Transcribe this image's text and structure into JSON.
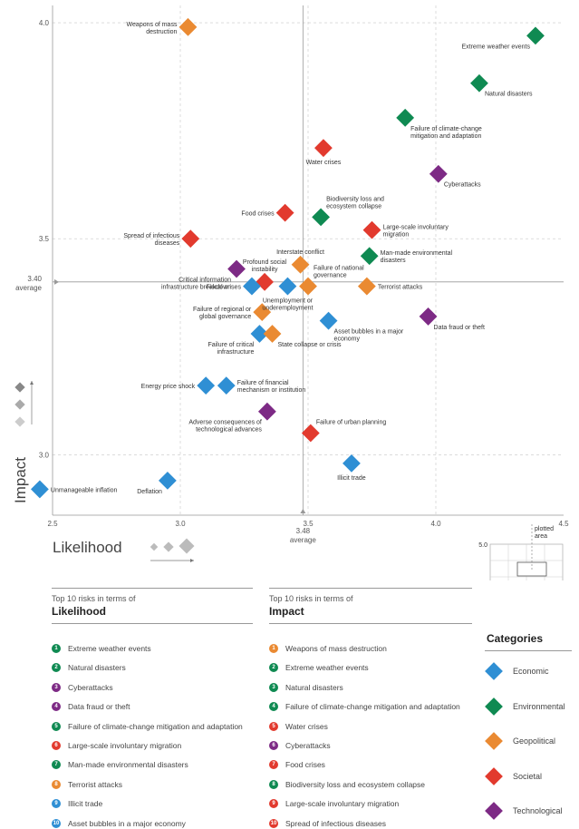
{
  "colors": {
    "Economic": "#2f8fd4",
    "Environmental": "#0f8a52",
    "Geopolitical": "#ea8a32",
    "Societal": "#e23a2e",
    "Technological": "#7d2a85"
  },
  "chart_data": {
    "type": "scatter",
    "xlim": [
      2.5,
      4.5
    ],
    "ylim": [
      2.86,
      4.04
    ],
    "xticks": [
      "2.5",
      "3.0",
      "3.5",
      "4.0",
      "4.5"
    ],
    "yticks": [
      "3.0",
      "3.5",
      "4.0"
    ],
    "xlabel": "Likelihood",
    "ylabel": "Impact",
    "x_average": {
      "value": "3.48",
      "label": "average"
    },
    "y_average": {
      "value": "3.40",
      "label": "average"
    },
    "grid": true,
    "points": [
      {
        "label": "Extreme weather events",
        "x": 4.39,
        "y": 3.97,
        "category": "Environmental",
        "label_pos": "bl"
      },
      {
        "label": "Natural disasters",
        "x": 4.17,
        "y": 3.86,
        "category": "Environmental",
        "label_pos": "br"
      },
      {
        "label": "Failure of climate-change mitigation and adaptation",
        "x": 3.88,
        "y": 3.78,
        "category": "Environmental",
        "label_pos": "br"
      },
      {
        "label": "Cyberattacks",
        "x": 4.01,
        "y": 3.65,
        "category": "Technological",
        "label_pos": "br"
      },
      {
        "label": "Water crises",
        "x": 3.56,
        "y": 3.71,
        "category": "Societal",
        "label_pos": "b"
      },
      {
        "label": "Food crises",
        "x": 3.41,
        "y": 3.56,
        "category": "Societal",
        "label_pos": "l"
      },
      {
        "label": "Biodiversity loss and ecosystem collapse",
        "x": 3.55,
        "y": 3.55,
        "category": "Environmental",
        "label_pos": "tr"
      },
      {
        "label": "Large-scale involuntary migration",
        "x": 3.75,
        "y": 3.52,
        "category": "Societal",
        "label_pos": "r"
      },
      {
        "label": "Man-made environmental disasters",
        "x": 3.74,
        "y": 3.46,
        "category": "Environmental",
        "label_pos": "r"
      },
      {
        "label": "Weapons of mass destruction",
        "x": 3.03,
        "y": 3.99,
        "category": "Geopolitical",
        "label_pos": "l"
      },
      {
        "label": "Spread of infectious diseases",
        "x": 3.04,
        "y": 3.5,
        "category": "Societal",
        "label_pos": "l"
      },
      {
        "label": "Interstate conflict",
        "x": 3.47,
        "y": 3.44,
        "category": "Geopolitical",
        "label_pos": "t"
      },
      {
        "label": "Critical information infrastructure breakdown",
        "x": 3.22,
        "y": 3.43,
        "category": "Technological",
        "label_pos": "bl"
      },
      {
        "label": "Profound social instability",
        "x": 3.33,
        "y": 3.4,
        "category": "Societal",
        "label_pos": "t"
      },
      {
        "label": "Fiscal crises",
        "x": 3.28,
        "y": 3.39,
        "category": "Economic",
        "label_pos": "l"
      },
      {
        "label": "Failure of national governance",
        "x": 3.5,
        "y": 3.39,
        "category": "Geopolitical",
        "label_pos": "tr"
      },
      {
        "label": "Terrorist attacks",
        "x": 3.73,
        "y": 3.39,
        "category": "Geopolitical",
        "label_pos": "r"
      },
      {
        "label": "Unemployment or underemployment",
        "x": 3.42,
        "y": 3.39,
        "category": "Economic",
        "label_pos": "b"
      },
      {
        "label": "Failure of regional or global governance",
        "x": 3.32,
        "y": 3.33,
        "category": "Geopolitical",
        "label_pos": "l"
      },
      {
        "label": "Asset bubbles in a major economy",
        "x": 3.58,
        "y": 3.31,
        "category": "Economic",
        "label_pos": "br"
      },
      {
        "label": "Data fraud or theft",
        "x": 3.97,
        "y": 3.32,
        "category": "Technological",
        "label_pos": "br"
      },
      {
        "label": "Failure of critical infrastructure",
        "x": 3.31,
        "y": 3.28,
        "category": "Economic",
        "label_pos": "bl"
      },
      {
        "label": "State collapse or crisis",
        "x": 3.36,
        "y": 3.28,
        "category": "Geopolitical",
        "label_pos": "br"
      },
      {
        "label": "Energy price shock",
        "x": 3.1,
        "y": 3.16,
        "category": "Economic",
        "label_pos": "l"
      },
      {
        "label": "Failure of financial mechanism or institution",
        "x": 3.18,
        "y": 3.16,
        "category": "Economic",
        "label_pos": "r"
      },
      {
        "label": "Adverse consequences of technological advances",
        "x": 3.34,
        "y": 3.1,
        "category": "Technological",
        "label_pos": "bl"
      },
      {
        "label": "Failure of urban planning",
        "x": 3.51,
        "y": 3.05,
        "category": "Societal",
        "label_pos": "tr"
      },
      {
        "label": "Illicit trade",
        "x": 3.67,
        "y": 2.98,
        "category": "Economic",
        "label_pos": "b"
      },
      {
        "label": "Deflation",
        "x": 2.95,
        "y": 2.94,
        "category": "Economic",
        "label_pos": "bl"
      },
      {
        "label": "Unmanageable inflation",
        "x": 2.45,
        "y": 2.92,
        "category": "Economic",
        "label_pos": "r"
      }
    ]
  },
  "legend_inset": {
    "title": "plotted area",
    "ymax": "5.0",
    "xmin": "1.0",
    "xmax": "5.0"
  },
  "likelihood_list": {
    "subtitle": "Top 10 risks in terms of",
    "title": "Likelihood",
    "items": [
      {
        "n": "1",
        "label": "Extreme weather events",
        "category": "Environmental"
      },
      {
        "n": "2",
        "label": "Natural disasters",
        "category": "Environmental"
      },
      {
        "n": "3",
        "label": "Cyberattacks",
        "category": "Technological"
      },
      {
        "n": "4",
        "label": "Data fraud or theft",
        "category": "Technological"
      },
      {
        "n": "5",
        "label": "Failure of climate-change mitigation and adaptation",
        "category": "Environmental"
      },
      {
        "n": "6",
        "label": "Large-scale involuntary migration",
        "category": "Societal"
      },
      {
        "n": "7",
        "label": "Man-made environmental disasters",
        "category": "Environmental"
      },
      {
        "n": "8",
        "label": "Terrorist attacks",
        "category": "Geopolitical"
      },
      {
        "n": "9",
        "label": "Illicit trade",
        "category": "Economic"
      },
      {
        "n": "10",
        "label": "Asset bubbles in a major economy",
        "category": "Economic"
      }
    ]
  },
  "impact_list": {
    "subtitle": "Top 10 risks in terms of",
    "title": "Impact",
    "items": [
      {
        "n": "1",
        "label": "Weapons of mass destruction",
        "category": "Geopolitical"
      },
      {
        "n": "2",
        "label": "Extreme weather events",
        "category": "Environmental"
      },
      {
        "n": "3",
        "label": "Natural disasters",
        "category": "Environmental"
      },
      {
        "n": "4",
        "label": "Failure of climate-change mitigation and adaptation",
        "category": "Environmental"
      },
      {
        "n": "5",
        "label": "Water crises",
        "category": "Societal"
      },
      {
        "n": "6",
        "label": "Cyberattacks",
        "category": "Technological"
      },
      {
        "n": "7",
        "label": "Food crises",
        "category": "Societal"
      },
      {
        "n": "8",
        "label": "Biodiversity loss and ecosystem collapse",
        "category": "Environmental"
      },
      {
        "n": "9",
        "label": "Large-scale involuntary migration",
        "category": "Societal"
      },
      {
        "n": "10",
        "label": "Spread of infectious diseases",
        "category": "Societal"
      }
    ]
  },
  "categories": {
    "title": "Categories",
    "items": [
      "Economic",
      "Environmental",
      "Geopolitical",
      "Societal",
      "Technological"
    ]
  }
}
